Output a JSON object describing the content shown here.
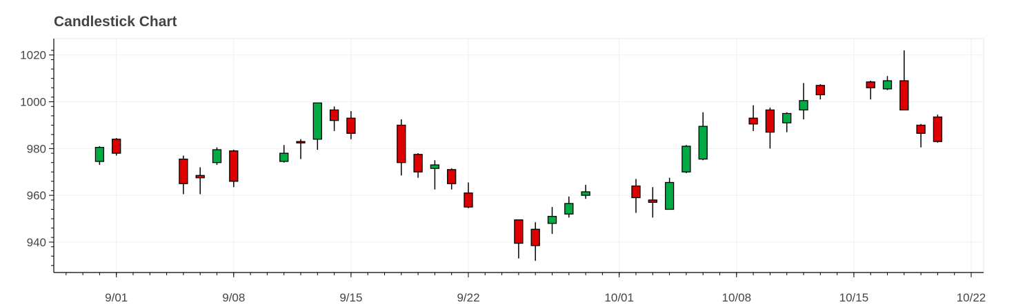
{
  "chart_data": {
    "type": "candlestick",
    "title": "Candlestick Chart",
    "xlabel": "",
    "ylabel": "",
    "x_range": [
      "2017-08-28",
      "2017-10-22"
    ],
    "ylim": [
      927,
      1027
    ],
    "grid": true,
    "legend": "none",
    "colors": {
      "increasing": "#00aa44",
      "decreasing": "#dd0000",
      "wick": "#000000"
    },
    "x_ticks": [
      {
        "date": "2017-09-01",
        "label": "9/01"
      },
      {
        "date": "2017-09-08",
        "label": "9/08"
      },
      {
        "date": "2017-09-15",
        "label": "9/15"
      },
      {
        "date": "2017-09-22",
        "label": "9/22"
      },
      {
        "date": "2017-10-01",
        "label": "10/01"
      },
      {
        "date": "2017-10-08",
        "label": "10/08"
      },
      {
        "date": "2017-10-15",
        "label": "10/15"
      },
      {
        "date": "2017-10-22",
        "label": "10/22"
      }
    ],
    "y_ticks": [
      940,
      960,
      980,
      1000,
      1020
    ],
    "candles": [
      {
        "date": "2017-08-31",
        "open": 974.5,
        "high": 981.0,
        "low": 973.0,
        "close": 980.5
      },
      {
        "date": "2017-09-01",
        "open": 984.0,
        "high": 984.5,
        "low": 977.0,
        "close": 978.0
      },
      {
        "date": "2017-09-05",
        "open": 975.5,
        "high": 977.0,
        "low": 960.5,
        "close": 965.0
      },
      {
        "date": "2017-09-06",
        "open": 968.5,
        "high": 972.0,
        "low": 960.5,
        "close": 967.5
      },
      {
        "date": "2017-09-07",
        "open": 974.0,
        "high": 980.5,
        "low": 973.0,
        "close": 979.5
      },
      {
        "date": "2017-09-08",
        "open": 979.0,
        "high": 979.5,
        "low": 963.5,
        "close": 966.0
      },
      {
        "date": "2017-09-11",
        "open": 974.5,
        "high": 981.5,
        "low": 974.0,
        "close": 978.0
      },
      {
        "date": "2017-09-12",
        "open": 983.0,
        "high": 984.0,
        "low": 975.5,
        "close": 982.5
      },
      {
        "date": "2017-09-13",
        "open": 984.0,
        "high": 999.5,
        "low": 979.5,
        "close": 999.5
      },
      {
        "date": "2017-09-14",
        "open": 996.5,
        "high": 998.0,
        "low": 987.5,
        "close": 992.0
      },
      {
        "date": "2017-09-15",
        "open": 993.0,
        "high": 996.0,
        "low": 984.0,
        "close": 986.5
      },
      {
        "date": "2017-09-18",
        "open": 990.0,
        "high": 992.5,
        "low": 968.5,
        "close": 974.0
      },
      {
        "date": "2017-09-19",
        "open": 977.5,
        "high": 978.0,
        "low": 967.5,
        "close": 970.0
      },
      {
        "date": "2017-09-20",
        "open": 971.5,
        "high": 975.0,
        "low": 962.5,
        "close": 973.0
      },
      {
        "date": "2017-09-21",
        "open": 971.0,
        "high": 971.5,
        "low": 962.5,
        "close": 965.0
      },
      {
        "date": "2017-09-22",
        "open": 961.0,
        "high": 965.5,
        "low": 954.5,
        "close": 955.0
      },
      {
        "date": "2017-09-25",
        "open": 949.5,
        "high": 949.5,
        "low": 933.0,
        "close": 939.5
      },
      {
        "date": "2017-09-26",
        "open": 945.5,
        "high": 948.5,
        "low": 932.0,
        "close": 938.5
      },
      {
        "date": "2017-09-27",
        "open": 948.0,
        "high": 955.0,
        "low": 943.5,
        "close": 951.0
      },
      {
        "date": "2017-09-28",
        "open": 952.0,
        "high": 959.5,
        "low": 950.5,
        "close": 956.5
      },
      {
        "date": "2017-09-29",
        "open": 960.0,
        "high": 964.5,
        "low": 958.5,
        "close": 961.5
      },
      {
        "date": "2017-10-02",
        "open": 964.0,
        "high": 967.0,
        "low": 952.5,
        "close": 959.0
      },
      {
        "date": "2017-10-03",
        "open": 958.0,
        "high": 963.5,
        "low": 950.5,
        "close": 957.0
      },
      {
        "date": "2017-10-04",
        "open": 954.0,
        "high": 967.5,
        "low": 954.0,
        "close": 965.5
      },
      {
        "date": "2017-10-05",
        "open": 970.0,
        "high": 981.5,
        "low": 969.5,
        "close": 981.0
      },
      {
        "date": "2017-10-06",
        "open": 975.5,
        "high": 995.5,
        "low": 975.0,
        "close": 989.5
      },
      {
        "date": "2017-10-09",
        "open": 993.0,
        "high": 998.5,
        "low": 987.5,
        "close": 990.5
      },
      {
        "date": "2017-10-10",
        "open": 996.5,
        "high": 997.5,
        "low": 980.0,
        "close": 987.0
      },
      {
        "date": "2017-10-11",
        "open": 991.0,
        "high": 995.5,
        "low": 987.0,
        "close": 995.0
      },
      {
        "date": "2017-10-12",
        "open": 996.5,
        "high": 1008.0,
        "low": 992.5,
        "close": 1000.5
      },
      {
        "date": "2017-10-13",
        "open": 1007.0,
        "high": 1007.5,
        "low": 1001.0,
        "close": 1003.0
      },
      {
        "date": "2017-10-16",
        "open": 1008.5,
        "high": 1009.0,
        "low": 1001.0,
        "close": 1006.0
      },
      {
        "date": "2017-10-17",
        "open": 1005.5,
        "high": 1011.0,
        "low": 1005.0,
        "close": 1009.0
      },
      {
        "date": "2017-10-18",
        "open": 1009.0,
        "high": 1022.0,
        "low": 996.5,
        "close": 996.5
      },
      {
        "date": "2017-10-19",
        "open": 990.0,
        "high": 990.5,
        "low": 980.5,
        "close": 986.5
      },
      {
        "date": "2017-10-20",
        "open": 993.5,
        "high": 994.5,
        "low": 982.5,
        "close": 983.0
      }
    ]
  }
}
